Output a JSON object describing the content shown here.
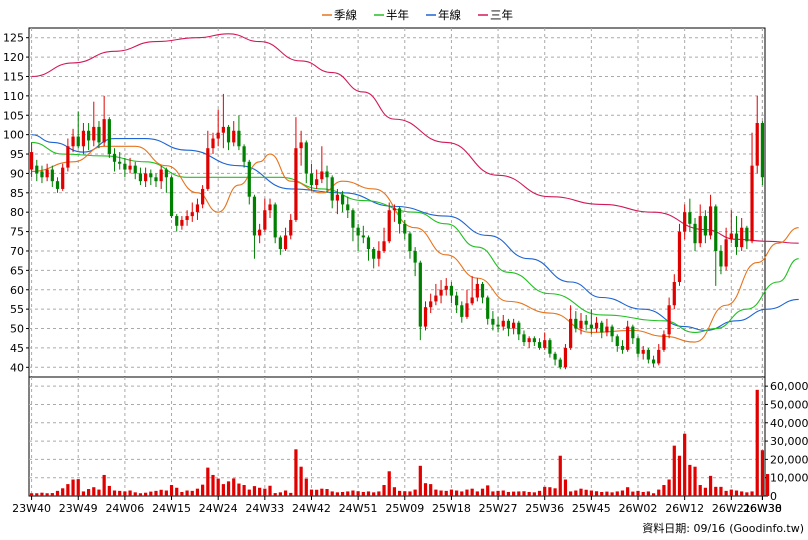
{
  "chart_data": {
    "type": "candlestick",
    "legend": [
      {
        "label": "季線",
        "color": "#e8731c"
      },
      {
        "label": "半年",
        "color": "#22c022"
      },
      {
        "label": "年線",
        "color": "#1e64d2"
      },
      {
        "label": "三年",
        "color": "#d2195a"
      }
    ],
    "price_axis": {
      "ticks": [
        40,
        45,
        50,
        55,
        60,
        65,
        70,
        75,
        80,
        85,
        90,
        95,
        100,
        105,
        110,
        115,
        120,
        125
      ],
      "range": [
        37.5,
        127.5
      ]
    },
    "volume_axis": {
      "tick_labels": [
        "0",
        "10,000",
        "20,000",
        "30,000",
        "40,000",
        "50,000",
        "60,000"
      ],
      "range": [
        0,
        65000
      ]
    },
    "x_labels": [
      "23W40",
      "23W49",
      "24W06",
      "24W15",
      "24W24",
      "24W33",
      "24W42",
      "24W51",
      "25W09",
      "25W18",
      "25W27",
      "25W36",
      "25W45",
      "26W02",
      "26W12",
      "26W21",
      "26W30",
      "26W38"
    ],
    "colors": {
      "up": "#e00000",
      "down": "#008000",
      "volume": "#e00000",
      "grid": "#aaaaaa"
    },
    "candles": [
      [
        91.0,
        95.5,
        98.0,
        89.0
      ],
      [
        92.0,
        90.0,
        93.5,
        88.0
      ],
      [
        90.5,
        89.0,
        92.0,
        87.5
      ],
      [
        89.0,
        91.0,
        92.5,
        88.0
      ],
      [
        91.0,
        88.0,
        92.0,
        86.5
      ],
      [
        88.0,
        86.0,
        89.0,
        85.0
      ],
      [
        86.0,
        91.5,
        92.5,
        85.5
      ],
      [
        91.5,
        97.0,
        99.0,
        90.5
      ],
      [
        97.0,
        99.5,
        101.5,
        95.5
      ],
      [
        99.5,
        97.0,
        106.0,
        96.5
      ],
      [
        97.0,
        101.0,
        103.0,
        95.0
      ],
      [
        101.0,
        98.5,
        103.0,
        96.0
      ],
      [
        98.5,
        102.0,
        108.5,
        97.0
      ],
      [
        102.0,
        98.0,
        103.5,
        96.5
      ],
      [
        98.0,
        104.0,
        110.0,
        97.0
      ],
      [
        104.0,
        95.0,
        104.5,
        94.0
      ],
      [
        95.0,
        93.0,
        96.5,
        90.5
      ],
      [
        93.0,
        92.5,
        95.5,
        91.0
      ],
      [
        92.5,
        91.0,
        94.0,
        89.0
      ],
      [
        91.0,
        92.0,
        94.0,
        90.0
      ],
      [
        92.0,
        90.0,
        93.0,
        88.5
      ],
      [
        90.0,
        88.0,
        91.5,
        87.0
      ],
      [
        88.0,
        90.0,
        91.5,
        86.5
      ],
      [
        90.0,
        89.0,
        91.0,
        87.0
      ],
      [
        89.0,
        88.0,
        90.0,
        86.5
      ],
      [
        88.0,
        91.0,
        92.0,
        86.0
      ],
      [
        91.0,
        89.0,
        91.5,
        85.0
      ],
      [
        89.0,
        79.0,
        89.5,
        78.5
      ],
      [
        79.0,
        76.5,
        79.5,
        75.0
      ],
      [
        76.5,
        78.0,
        79.0,
        75.5
      ],
      [
        78.0,
        79.0,
        80.5,
        76.5
      ],
      [
        79.0,
        80.0,
        82.5,
        77.5
      ],
      [
        80.0,
        82.0,
        83.5,
        78.0
      ],
      [
        82.0,
        86.0,
        87.0,
        81.0
      ],
      [
        86.0,
        96.5,
        101.0,
        85.5
      ],
      [
        96.5,
        99.0,
        100.5,
        95.0
      ],
      [
        99.0,
        100.5,
        106.5,
        97.0
      ],
      [
        100.5,
        102.0,
        110.5,
        96.5
      ],
      [
        102.0,
        98.0,
        102.5,
        96.0
      ],
      [
        98.0,
        101.0,
        103.5,
        97.0
      ],
      [
        101.0,
        97.0,
        105.0,
        96.0
      ],
      [
        97.0,
        93.0,
        97.5,
        91.5
      ],
      [
        93.0,
        84.0,
        93.5,
        82.0
      ],
      [
        84.0,
        74.0,
        84.5,
        68.0
      ],
      [
        74.0,
        75.5,
        77.0,
        72.0
      ],
      [
        75.5,
        80.5,
        83.5,
        75.0
      ],
      [
        80.5,
        82.0,
        83.5,
        78.5
      ],
      [
        82.0,
        73.5,
        82.5,
        72.0
      ],
      [
        73.5,
        70.5,
        74.0,
        69.0
      ],
      [
        70.5,
        74.0,
        76.0,
        70.0
      ],
      [
        74.0,
        78.0,
        79.5,
        73.0
      ],
      [
        78.0,
        96.5,
        104.5,
        77.5
      ],
      [
        96.5,
        98.0,
        101.0,
        92.0
      ],
      [
        98.0,
        90.0,
        98.5,
        87.5
      ],
      [
        90.0,
        87.0,
        92.5,
        85.5
      ],
      [
        87.0,
        88.5,
        91.0,
        86.0
      ],
      [
        88.5,
        90.5,
        97.0,
        87.5
      ],
      [
        90.5,
        89.0,
        92.0,
        85.0
      ],
      [
        89.0,
        83.0,
        89.5,
        81.0
      ],
      [
        83.0,
        84.5,
        86.0,
        79.5
      ],
      [
        84.5,
        82.0,
        85.5,
        80.0
      ],
      [
        82.0,
        80.5,
        84.0,
        78.5
      ],
      [
        80.5,
        76.0,
        81.0,
        72.5
      ],
      [
        76.0,
        74.0,
        77.0,
        70.0
      ],
      [
        74.0,
        73.5,
        76.5,
        72.0
      ],
      [
        73.5,
        70.5,
        74.0,
        67.5
      ],
      [
        70.5,
        68.0,
        71.0,
        65.5
      ],
      [
        68.0,
        70.0,
        72.5,
        66.0
      ],
      [
        70.0,
        72.5,
        76.0,
        69.5
      ],
      [
        72.5,
        80.5,
        82.5,
        72.0
      ],
      [
        80.5,
        81.0,
        82.0,
        77.5
      ],
      [
        81.0,
        77.0,
        81.5,
        74.5
      ],
      [
        77.0,
        74.5,
        78.0,
        73.0
      ],
      [
        74.5,
        70.0,
        75.0,
        68.0
      ],
      [
        70.0,
        67.0,
        71.0,
        63.5
      ],
      [
        67.0,
        50.5,
        67.5,
        47.0
      ],
      [
        50.5,
        55.5,
        57.0,
        49.5
      ],
      [
        55.5,
        57.0,
        59.0,
        54.0
      ],
      [
        57.0,
        58.5,
        61.5,
        56.0
      ],
      [
        58.5,
        60.0,
        62.5,
        56.5
      ],
      [
        60.0,
        61.0,
        63.0,
        58.5
      ],
      [
        61.0,
        58.5,
        62.0,
        56.5
      ],
      [
        58.5,
        56.0,
        59.5,
        54.0
      ],
      [
        56.0,
        53.0,
        57.0,
        51.5
      ],
      [
        53.0,
        56.5,
        60.0,
        52.5
      ],
      [
        56.5,
        58.0,
        63.5,
        56.0
      ],
      [
        58.0,
        61.5,
        63.0,
        57.0
      ],
      [
        61.5,
        58.0,
        62.0,
        56.5
      ],
      [
        58.0,
        52.5,
        58.5,
        51.0
      ],
      [
        52.5,
        51.0,
        54.5,
        49.5
      ],
      [
        51.0,
        50.5,
        53.0,
        49.0
      ],
      [
        50.5,
        52.0,
        53.5,
        49.5
      ],
      [
        52.0,
        50.0,
        52.5,
        48.0
      ],
      [
        50.0,
        51.5,
        52.5,
        48.5
      ],
      [
        51.5,
        48.5,
        52.0,
        47.0
      ],
      [
        48.5,
        46.5,
        49.5,
        45.5
      ],
      [
        46.5,
        47.5,
        48.0,
        45.0
      ],
      [
        47.5,
        46.5,
        48.0,
        45.5
      ],
      [
        46.5,
        45.0,
        47.5,
        44.5
      ],
      [
        45.0,
        47.0,
        49.0,
        44.5
      ],
      [
        47.0,
        43.5,
        47.5,
        42.5
      ],
      [
        43.5,
        42.0,
        44.0,
        40.5
      ],
      [
        42.0,
        40.0,
        42.5,
        39.5
      ],
      [
        40.0,
        45.0,
        46.0,
        39.5
      ],
      [
        45.0,
        52.5,
        56.0,
        44.5
      ],
      [
        52.5,
        50.0,
        54.5,
        49.0
      ],
      [
        50.0,
        52.0,
        54.0,
        48.5
      ],
      [
        52.0,
        51.0,
        53.5,
        49.5
      ],
      [
        51.0,
        50.0,
        55.0,
        48.5
      ],
      [
        50.0,
        51.5,
        53.0,
        49.0
      ],
      [
        51.5,
        49.0,
        52.0,
        47.5
      ],
      [
        49.0,
        50.5,
        52.5,
        48.0
      ],
      [
        50.5,
        48.0,
        51.0,
        46.5
      ],
      [
        48.0,
        45.5,
        48.5,
        44.0
      ],
      [
        45.5,
        44.5,
        47.0,
        43.5
      ],
      [
        44.5,
        50.5,
        52.0,
        44.0
      ],
      [
        50.5,
        47.5,
        51.0,
        46.0
      ],
      [
        47.5,
        43.5,
        48.0,
        42.5
      ],
      [
        43.5,
        44.5,
        45.5,
        42.0
      ],
      [
        44.5,
        42.0,
        45.0,
        41.0
      ],
      [
        42.0,
        41.0,
        43.0,
        40.0
      ],
      [
        41.0,
        44.5,
        46.0,
        40.5
      ],
      [
        44.5,
        48.5,
        49.5,
        44.0
      ],
      [
        48.5,
        56.0,
        58.0,
        47.5
      ],
      [
        56.0,
        62.0,
        64.0,
        55.0
      ],
      [
        62.0,
        75.0,
        77.0,
        61.0
      ],
      [
        75.0,
        80.0,
        82.0,
        73.0
      ],
      [
        80.0,
        77.0,
        83.5,
        75.0
      ],
      [
        77.0,
        72.0,
        78.5,
        70.0
      ],
      [
        72.0,
        79.0,
        82.0,
        71.0
      ],
      [
        79.0,
        74.0,
        80.5,
        72.0
      ],
      [
        74.0,
        81.5,
        84.5,
        73.0
      ],
      [
        81.5,
        70.0,
        82.0,
        61.0
      ],
      [
        70.0,
        66.0,
        71.5,
        64.0
      ],
      [
        66.0,
        73.0,
        76.0,
        65.0
      ],
      [
        73.0,
        74.5,
        80.5,
        72.0
      ],
      [
        74.5,
        71.0,
        79.0,
        69.0
      ],
      [
        71.0,
        76.0,
        78.5,
        70.0
      ],
      [
        76.0,
        72.5,
        76.5,
        70.5
      ],
      [
        72.5,
        92.0,
        100.5,
        72.0
      ],
      [
        92.0,
        103.0,
        110.0,
        90.0
      ],
      [
        103.0,
        89.0,
        103.5,
        87.0
      ]
    ],
    "volumes": [
      1500,
      1500,
      1800,
      1500,
      1600,
      2800,
      4200,
      6500,
      9000,
      9200,
      2500,
      3800,
      4800,
      3500,
      11500,
      5500,
      3000,
      2800,
      2500,
      3000,
      2000,
      1500,
      1800,
      2400,
      2800,
      3400,
      3000,
      6000,
      4500,
      2200,
      3000,
      2800,
      4000,
      6200,
      15500,
      11500,
      9500,
      6500,
      8000,
      9600,
      6800,
      6000,
      3500,
      5400,
      4500,
      4000,
      5600,
      1600,
      2000,
      3000,
      1700,
      25500,
      16000,
      9500,
      3500,
      3400,
      4000,
      3800,
      2500,
      2000,
      2200,
      2500,
      3000,
      2600,
      2200,
      2500,
      2000,
      2500,
      6000,
      13500,
      4800,
      2800,
      2600,
      2500,
      3500,
      16500,
      7000,
      6500,
      3500,
      3000,
      2800,
      3500,
      3000,
      2500,
      3500,
      4000,
      2500,
      4000,
      5800,
      2500,
      2800,
      3000,
      2200,
      2400,
      2500,
      2600,
      2200,
      2000,
      2800,
      5000,
      4800,
      4200,
      22000,
      9000,
      2500,
      3000,
      4000,
      3400,
      3000,
      2600,
      2200,
      2400,
      2000,
      2500,
      3000,
      4800,
      2400,
      2800,
      2200,
      2500,
      1500,
      3500,
      6000,
      9000,
      27500,
      22000,
      34000,
      17000,
      16000,
      6000,
      4500,
      11000,
      5000,
      5000,
      2800,
      3500,
      3000,
      2500,
      2000,
      2500,
      58000,
      25000,
      12000
    ],
    "ma_quarter": [
      [
        0,
        90.5
      ],
      [
        8,
        93
      ],
      [
        14,
        97
      ],
      [
        20,
        97
      ],
      [
        26,
        92
      ],
      [
        32,
        85
      ],
      [
        36,
        80
      ],
      [
        40,
        87
      ],
      [
        44,
        93
      ],
      [
        46,
        95
      ],
      [
        50,
        88
      ],
      [
        56,
        85
      ],
      [
        60,
        88
      ],
      [
        66,
        86
      ],
      [
        74,
        76
      ],
      [
        80,
        69
      ],
      [
        86,
        63
      ],
      [
        92,
        57
      ],
      [
        100,
        54
      ],
      [
        108,
        49
      ],
      [
        116,
        49.5
      ],
      [
        122,
        48
      ],
      [
        128,
        46.5
      ],
      [
        134,
        56
      ],
      [
        140,
        67
      ],
      [
        144,
        72
      ],
      [
        148,
        76
      ]
    ],
    "ma_half": [
      [
        0,
        98
      ],
      [
        6,
        95
      ],
      [
        14,
        94.5
      ],
      [
        22,
        93
      ],
      [
        30,
        89
      ],
      [
        40,
        89
      ],
      [
        48,
        89
      ],
      [
        56,
        86
      ],
      [
        64,
        83
      ],
      [
        74,
        80
      ],
      [
        80,
        77
      ],
      [
        86,
        71
      ],
      [
        92,
        64.5
      ],
      [
        100,
        59
      ],
      [
        110,
        53.5
      ],
      [
        122,
        52
      ],
      [
        128,
        49
      ],
      [
        132,
        50
      ],
      [
        138,
        55
      ],
      [
        144,
        62
      ],
      [
        148,
        68
      ]
    ],
    "ma_year": [
      [
        0,
        100
      ],
      [
        4,
        98
      ],
      [
        10,
        95.5
      ],
      [
        16,
        99
      ],
      [
        22,
        99
      ],
      [
        30,
        96
      ],
      [
        40,
        92
      ],
      [
        50,
        86
      ],
      [
        60,
        85
      ],
      [
        70,
        81.5
      ],
      [
        80,
        79
      ],
      [
        88,
        74
      ],
      [
        96,
        68
      ],
      [
        104,
        62
      ],
      [
        110,
        58
      ],
      [
        118,
        55
      ],
      [
        126,
        50.5
      ],
      [
        130,
        49.5
      ],
      [
        136,
        52
      ],
      [
        142,
        55
      ],
      [
        148,
        57.5
      ]
    ],
    "ma_three": [
      [
        0,
        115
      ],
      [
        8,
        118.5
      ],
      [
        16,
        121.5
      ],
      [
        24,
        124
      ],
      [
        32,
        125
      ],
      [
        38,
        126
      ],
      [
        44,
        124
      ],
      [
        52,
        119
      ],
      [
        58,
        116
      ],
      [
        64,
        111
      ],
      [
        70,
        104
      ],
      [
        80,
        98
      ],
      [
        90,
        89.5
      ],
      [
        100,
        84
      ],
      [
        110,
        82
      ],
      [
        120,
        80
      ],
      [
        130,
        75.5
      ],
      [
        136,
        73
      ],
      [
        142,
        72.5
      ],
      [
        148,
        72
      ]
    ]
  },
  "footer": {
    "date_label": "資料日期: 09/16",
    "source": "(Goodinfo.tw)"
  }
}
